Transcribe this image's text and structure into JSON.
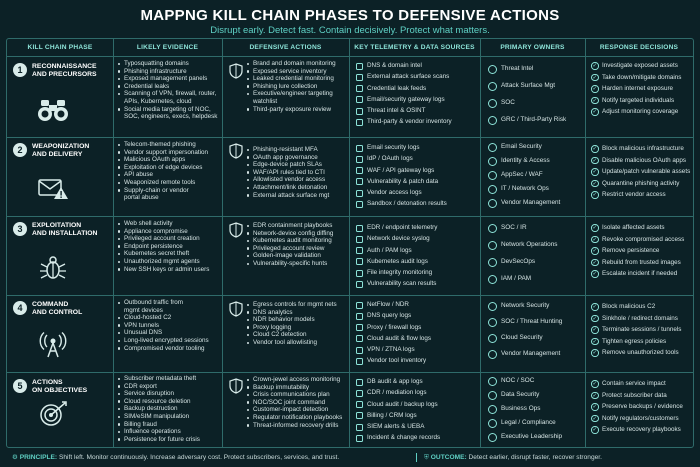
{
  "title": "MAPPNG KILL CHAIN PHASES TO DEFENSIVE ACTIONS",
  "subtitle": "Disrupt early. Detect fast. Contain decisively. Protect what matters.",
  "headers": [
    "KILL CHAIN PHASE",
    "LIKELY EVIDENCE",
    "DEFENSIVE ACTIONS",
    "KEY TELEMETRY & DATA SOURCES",
    "PRIMARY OWNERS",
    "RESPONSE DECISIONS"
  ],
  "rows": [
    {
      "num": "1",
      "phase": [
        "RECONNAISSANCE",
        "AND PRECURSORS"
      ],
      "icon": "binoculars-icon",
      "evidence": [
        "Typosquatting domains",
        "Phishing infrastructure",
        "Exposed management panels",
        "Credential leaks",
        "Scanning of VPN, firewall, router,",
        "APIs, Kubernetes, cloud",
        "Social media targeting of NOC,",
        "SOC, engineers, execs, helpdesk"
      ],
      "actions": [
        "Brand and domain monitoring",
        "Exposed service inventory",
        "Leaked credential monitoring",
        "Phishing lure collection",
        "Executive/engineer targeting",
        "watchlist",
        "Third-party exposure review"
      ],
      "sources": [
        "DNS & domain intel",
        "External attack surface scans",
        "Credential leak feeds",
        "Email/security gateway logs",
        "Threat intel & OSINT",
        "Third-party & vendor inventory"
      ],
      "owners": [
        "Threat Intel",
        "Attack Surface Mgt",
        "SOC",
        "GRC / Third-Party Risk"
      ],
      "decisions": [
        "Investigate exposed assets",
        "Take down/mitigate domains",
        "Harden internet exposure",
        "Notify targeted individuals",
        "Adjust monitoring coverage"
      ]
    },
    {
      "num": "2",
      "phase": [
        "WEAPONIZATION",
        "AND DELIVERY"
      ],
      "icon": "envelope-warning-icon",
      "evidence": [
        "Telecom-themed phishing",
        "Vendor support impersonation",
        "Malicious OAuth apps",
        "Exploitation of edge devices",
        "API abuse",
        "Weaponized remote tools",
        "Supply-chain or vendor",
        "portal abuse"
      ],
      "actions": [
        "Phishing-resistant MFA",
        "OAuth app governance",
        "Edge-device patch SLAs",
        "WAF/API rules tied to CTI",
        "Allowlisted vendor access",
        "Attachment/link detonation",
        "External attack surface mgt"
      ],
      "sources": [
        "Email security logs",
        "IdP / OAuth logs",
        "WAF / API gateway logs",
        "Vulnerability & patch data",
        "Vendor access logs",
        "Sandbox / detonation results"
      ],
      "owners": [
        "Email Security",
        "Identity & Access",
        "AppSec / WAF",
        "IT / Network Ops",
        "Vendor Management"
      ],
      "decisions": [
        "Block malicious infrastructure",
        "Disable malicious OAuth apps",
        "Update/patch vulnerable assets",
        "Quarantine phishing activity",
        "Restrict vendor access"
      ]
    },
    {
      "num": "3",
      "phase": [
        "EXPLOITATION",
        "AND INSTALLATION"
      ],
      "icon": "bug-icon",
      "evidence": [
        "Web shell activity",
        "Appliance compromise",
        "Privileged account creation",
        "Endpoint persistence",
        "Kubernetes secret theft",
        "Unauthorized mgmt agents",
        "New SSH keys or admin users"
      ],
      "actions": [
        "EDR containment playbooks",
        "Network-device config diffing",
        "Kubernetes audit monitoring",
        "Privileged account review",
        "Golden-image validation",
        "Vulnerability-specific hunts"
      ],
      "sources": [
        "EDR / endpoint telemetry",
        "Network device syslog",
        "Auth / PAM logs",
        "Kubernetes audit logs",
        "File integrity monitoring",
        "Vulnerability scan results"
      ],
      "owners": [
        "SOC / IR",
        "Network Operations",
        "DevSecOps",
        "IAM / PAM"
      ],
      "decisions": [
        "Isolate affected assets",
        "Revoke compromised access",
        "Remove persistence",
        "Rebuild from trusted images",
        "Escalate incident if needed"
      ]
    },
    {
      "num": "4",
      "phase": [
        "COMMAND",
        "AND CONTROL"
      ],
      "icon": "antenna-icon",
      "evidence": [
        "Outbound traffic from",
        "mgmt devices",
        "Cloud-hosted C2",
        "VPN tunnels",
        "Unusual DNS",
        "Long-lived encrypted sessions",
        "Compromised vendor tooling"
      ],
      "actions": [
        "Egress controls for mgmt nets",
        "DNS analytics",
        "NDR behavior models",
        "Proxy logging",
        "Cloud C2 detection",
        "Vendor tool allowlisting"
      ],
      "sources": [
        "NetFlow / NDR",
        "DNS query logs",
        "Proxy / firewall logs",
        "Cloud audit & flow logs",
        "VPN / ZTNA logs",
        "Vendor tool inventory"
      ],
      "owners": [
        "Network Security",
        "SOC / Threat Hunting",
        "Cloud Security",
        "Vendor Management"
      ],
      "decisions": [
        "Block malicious C2",
        "Sinkhole / redirect domains",
        "Terminate sessions / tunnels",
        "Tighten egress policies",
        "Remove unauthorized tools"
      ]
    },
    {
      "num": "5",
      "phase": [
        "ACTIONS",
        "ON OBJECTIVES"
      ],
      "icon": "target-icon",
      "evidence": [
        "Subscriber metadata theft",
        "CDR export",
        "Service disruption",
        "Cloud resource deletion",
        "Backup destruction",
        "SIM/eSIM manipulation",
        "Billing fraud",
        "Influence operations",
        "Persistence for future crisis"
      ],
      "actions": [
        "Crown-jewel access monitoring",
        "Backup immutability",
        "Crisis communications plan",
        "NOC/SOC joint command",
        "Customer-impact detection",
        "Regulator notification playbooks",
        "Threat-informed recovery drills"
      ],
      "sources": [
        "DB audit & app logs",
        "CDR / mediation logs",
        "Cloud audit / backup logs",
        "Billing / CRM logs",
        "SIEM alerts & UEBA",
        "Incident & change records"
      ],
      "owners": [
        "NOC / SOC",
        "Data Security",
        "Business Ops",
        "Legal / Compliance",
        "Executive Leadership"
      ],
      "decisions": [
        "Contain service impact",
        "Protect subscriber data",
        "Preserve backups / evidence",
        "Notify regulators/customers",
        "Execute recovery playbooks"
      ]
    }
  ],
  "footer": {
    "principle_label": "PRINCIPLE:",
    "principle_text": "Shift left. Monitor continuously. Increase adversary cost. Protect subscribers, services, and trust.",
    "outcome_label": "OUTCOME:",
    "outcome_text": "Detect earlier, disrupt faster, recover stronger."
  }
}
